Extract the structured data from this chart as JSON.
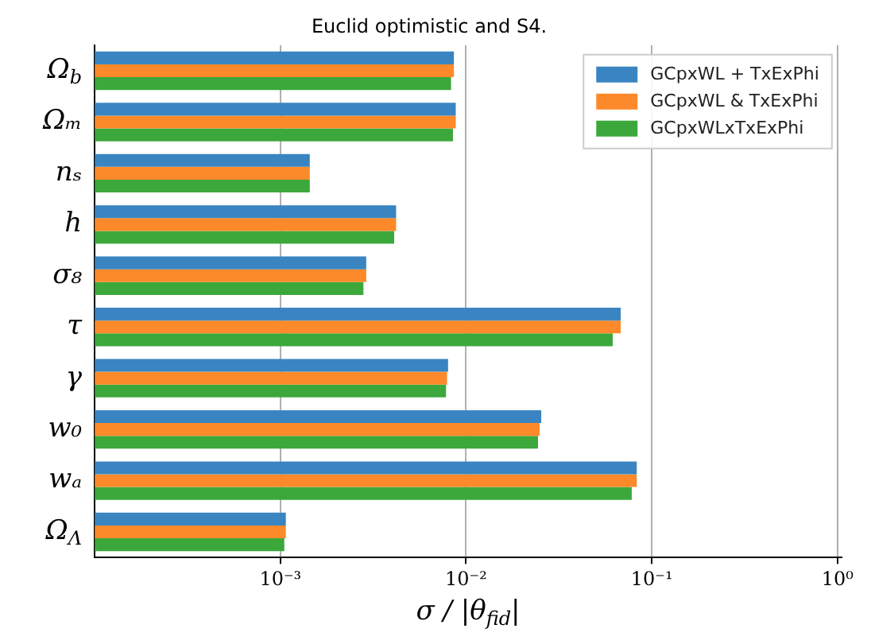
{
  "chart_data": {
    "type": "bar",
    "orientation": "horizontal",
    "title": "Euclid optimistic and S4.",
    "xlabel": "σ / |θ$_{fid}$|",
    "categories": [
      "Ω$_{b}$",
      "Ωₘ",
      "nₛ",
      "h",
      "σ₈",
      "τ",
      "γ",
      "w₀",
      "wₐ",
      "Ω$_{Λ}$"
    ],
    "series": [
      {
        "name": "GCpxWL + TxExPhi",
        "color": "#3a85c1",
        "values": [
          0.0086,
          0.0088,
          0.00144,
          0.0042,
          0.0029,
          0.068,
          0.008,
          0.0254,
          0.083,
          0.00107
        ]
      },
      {
        "name": "GCpxWL & TxExPhi",
        "color": "#fd8a2a",
        "values": [
          0.0086,
          0.0088,
          0.00144,
          0.0042,
          0.0029,
          0.068,
          0.0079,
          0.0249,
          0.083,
          0.00107
        ]
      },
      {
        "name": "GCpxWLxTxExPhi",
        "color": "#3ca83c",
        "values": [
          0.0083,
          0.0085,
          0.00144,
          0.0041,
          0.0028,
          0.0616,
          0.0078,
          0.0244,
          0.078,
          0.00105
        ]
      }
    ],
    "log": "x",
    "xlim": [
      0.0001,
      1.05
    ],
    "xticks": [
      {
        "value": 0.001,
        "label": "10⁻³"
      },
      {
        "value": 0.01,
        "label": "10⁻²"
      },
      {
        "value": 0.1,
        "label": "10⁻¹"
      },
      {
        "value": 1,
        "label": "10⁰"
      }
    ],
    "grid": "x",
    "legend": "top right"
  }
}
